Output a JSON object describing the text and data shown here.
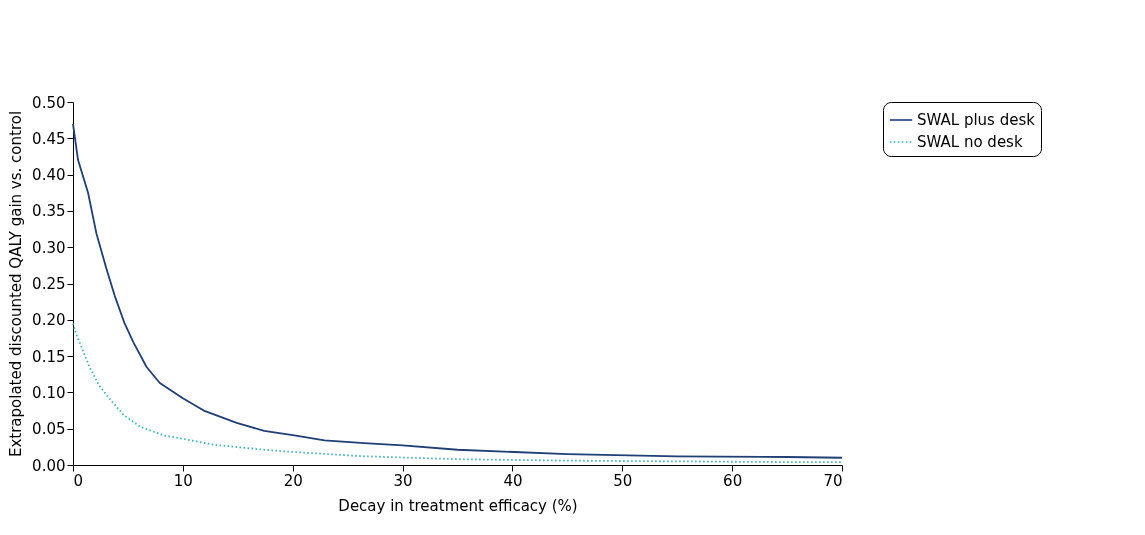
{
  "chart_data": {
    "type": "line",
    "xlabel": "Decay in treatment efficacy (%)",
    "ylabel": "Extrapolated discounted QALY gain vs. control",
    "xlim": [
      0,
      70
    ],
    "xticks": [
      0,
      10,
      20,
      30,
      40,
      50,
      60,
      70
    ],
    "ylim": [
      0,
      0.5
    ],
    "yticks": [
      {
        "value": 0,
        "label": "0.00"
      },
      {
        "value": 0.05,
        "label": "0.05"
      },
      {
        "value": 0.1,
        "label": "0.10"
      },
      {
        "value": 0.15,
        "label": "0.15"
      },
      {
        "value": 0.2,
        "label": "0.20"
      },
      {
        "value": 0.25,
        "label": "0.25"
      },
      {
        "value": 0.3,
        "label": "0.30"
      },
      {
        "value": 0.35,
        "label": "0.35"
      },
      {
        "value": 0.4,
        "label": "0.40"
      },
      {
        "value": 0.45,
        "label": "0.45"
      },
      {
        "value": 0.5,
        "label": "0.50"
      }
    ],
    "grid": false,
    "legend": "right",
    "marker": "none",
    "series": [
      {
        "name": "SWAL plus desk",
        "color": "#1f3f75",
        "line_style": "solid",
        "x": [
          0,
          0.46,
          1.37,
          2.13,
          3.05,
          3.8,
          4.7,
          5.5,
          6.7,
          7.9,
          10,
          11.9,
          14.9,
          17.4,
          20,
          22.9,
          26.5,
          30,
          35,
          45,
          55,
          65,
          70
        ],
        "values": [
          0.47,
          0.42,
          0.375,
          0.319,
          0.27,
          0.233,
          0.195,
          0.169,
          0.135,
          0.113,
          0.092,
          0.075,
          0.058,
          0.047,
          0.041,
          0.034,
          0.03,
          0.027,
          0.021,
          0.015,
          0.012,
          0.011,
          0.01
        ]
      },
      {
        "name": "SWAL no desk",
        "color": "#3ab0b5",
        "line_style": "dotted",
        "x": [
          0,
          0.3,
          0.9,
          1.5,
          2.4,
          3.4,
          4.6,
          6.1,
          8.2,
          10,
          12.8,
          17.4,
          20,
          26.5,
          35,
          45,
          55,
          65,
          70
        ],
        "values": [
          0.195,
          0.18,
          0.158,
          0.135,
          0.109,
          0.09,
          0.069,
          0.053,
          0.041,
          0.036,
          0.028,
          0.021,
          0.018,
          0.012,
          0.008,
          0.006,
          0.005,
          0.004,
          0.004
        ]
      }
    ]
  }
}
